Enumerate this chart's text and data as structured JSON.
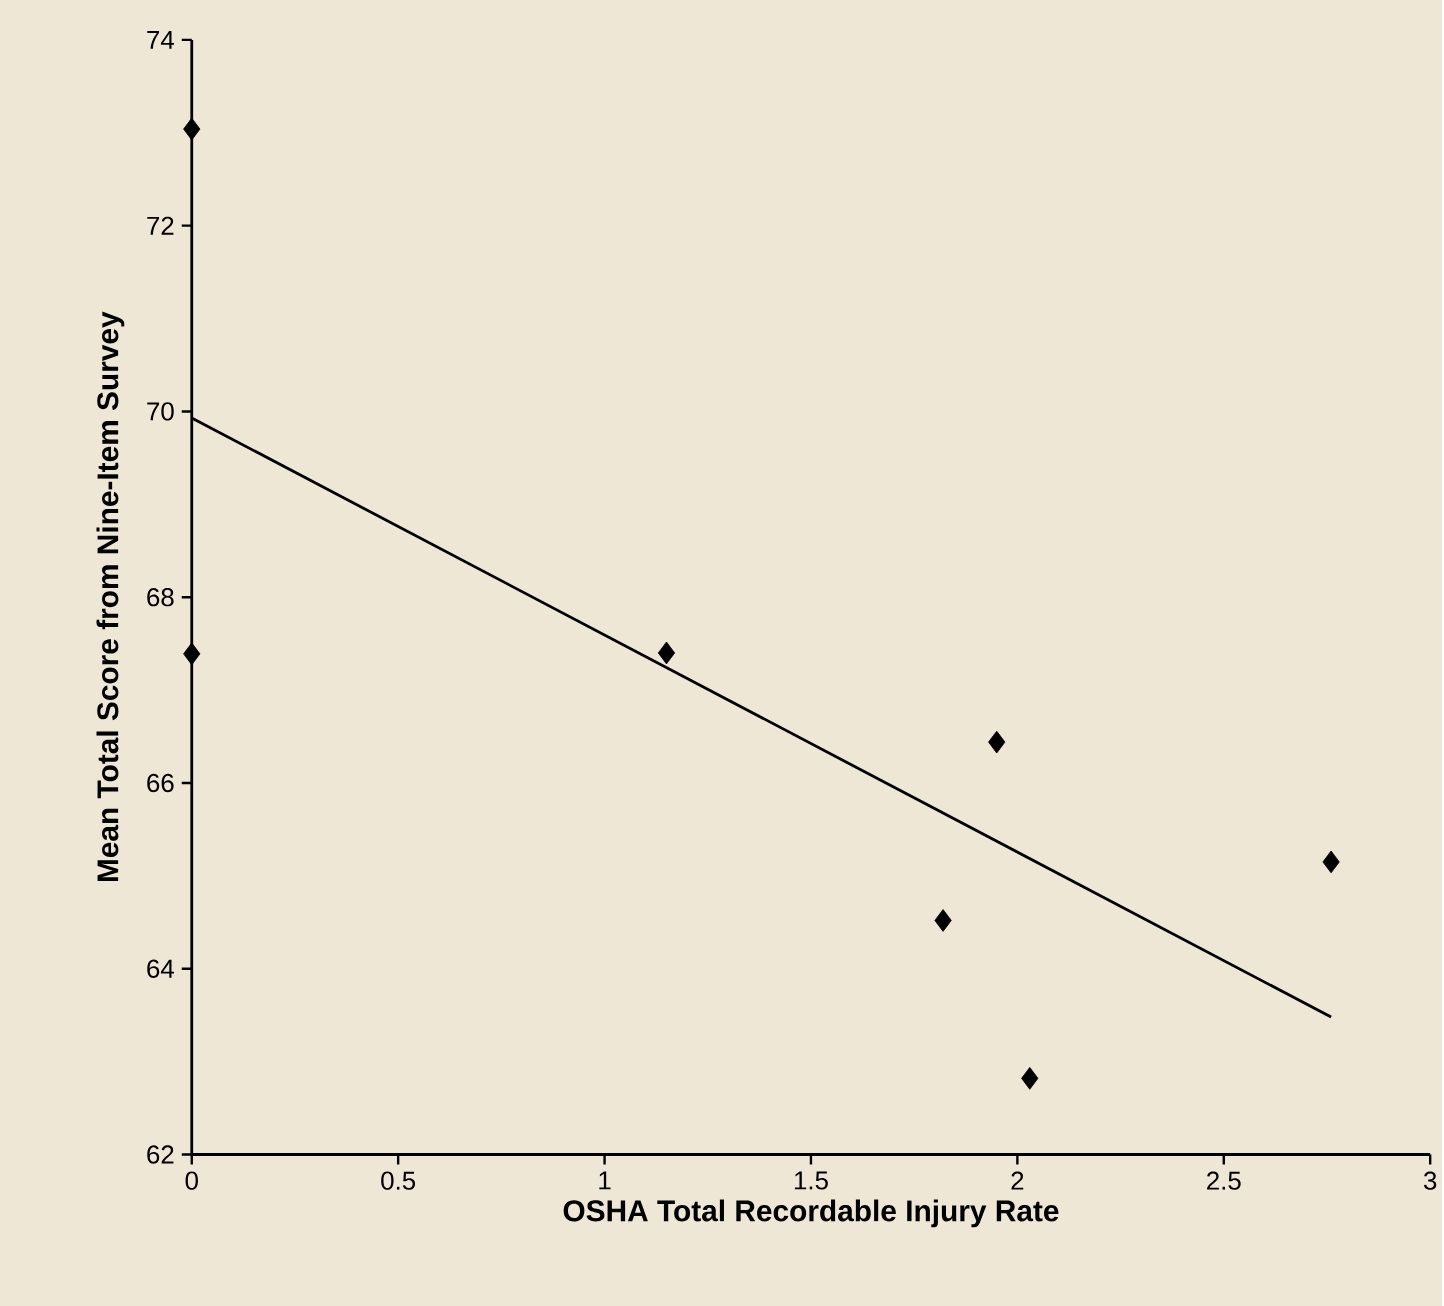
{
  "chart_data": {
    "type": "scatter",
    "xlabel": "OSHA Total Recordable Injury Rate",
    "ylabel": "Mean Total Score from Nine-Item Survey",
    "xlim": [
      0,
      3
    ],
    "xticks": [
      0,
      0.5,
      1,
      1.5,
      2,
      2.5,
      3
    ],
    "ylim": [
      62,
      74
    ],
    "yticks": [
      62,
      64,
      66,
      68,
      70,
      72,
      74
    ],
    "grid": false,
    "series": [
      {
        "color": "#000000",
        "marker": "diamond",
        "x": [
          0,
          0,
          1.15,
          1.82,
          1.95,
          2.03,
          2.76
        ],
        "values": [
          73.04,
          67.39,
          67.4,
          64.52,
          66.44,
          62.82,
          65.15
        ]
      },
      {
        "type": "line",
        "color": "#000000",
        "line_style": "solid",
        "x": [
          0,
          2.76
        ],
        "values": [
          69.93,
          63.48
        ]
      }
    ]
  }
}
